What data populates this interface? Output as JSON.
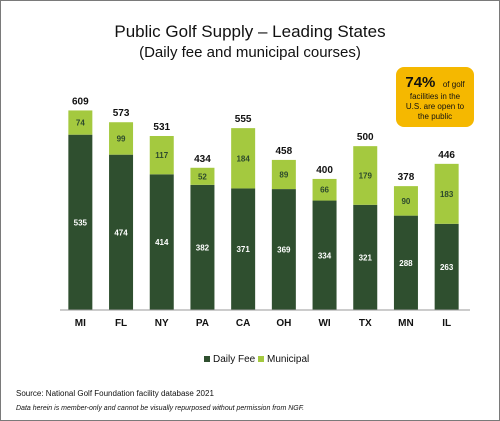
{
  "chart_data": {
    "type": "bar",
    "stacked": true,
    "title": "Public Golf Supply – Leading States",
    "subtitle": "(Daily fee and municipal courses)",
    "categories": [
      "MI",
      "FL",
      "NY",
      "PA",
      "CA",
      "OH",
      "WI",
      "TX",
      "MN",
      "IL"
    ],
    "series": [
      {
        "name": "Daily Fee",
        "color": "#2f4f2f",
        "values": [
          535,
          474,
          414,
          382,
          371,
          369,
          334,
          321,
          288,
          263
        ]
      },
      {
        "name": "Municipal",
        "color": "#a4c93f",
        "values": [
          74,
          99,
          117,
          52,
          184,
          89,
          66,
          179,
          90,
          183
        ]
      }
    ],
    "totals": [
      609,
      573,
      531,
      434,
      555,
      458,
      400,
      500,
      378,
      446
    ],
    "ylim": [
      0,
      650
    ],
    "grid": false,
    "legend": "bottom-center",
    "callout": {
      "stat": "74%",
      "line1_rest": "of golf",
      "line2": "facilities in the",
      "line3": "U.S. are open to",
      "line4": "the public",
      "color": "#f5b800"
    },
    "source": "Source: National Golf Foundation facility database 2021",
    "disclaimer": "Data herein is member-only and cannot be visually repurposed without permission from NGF."
  }
}
